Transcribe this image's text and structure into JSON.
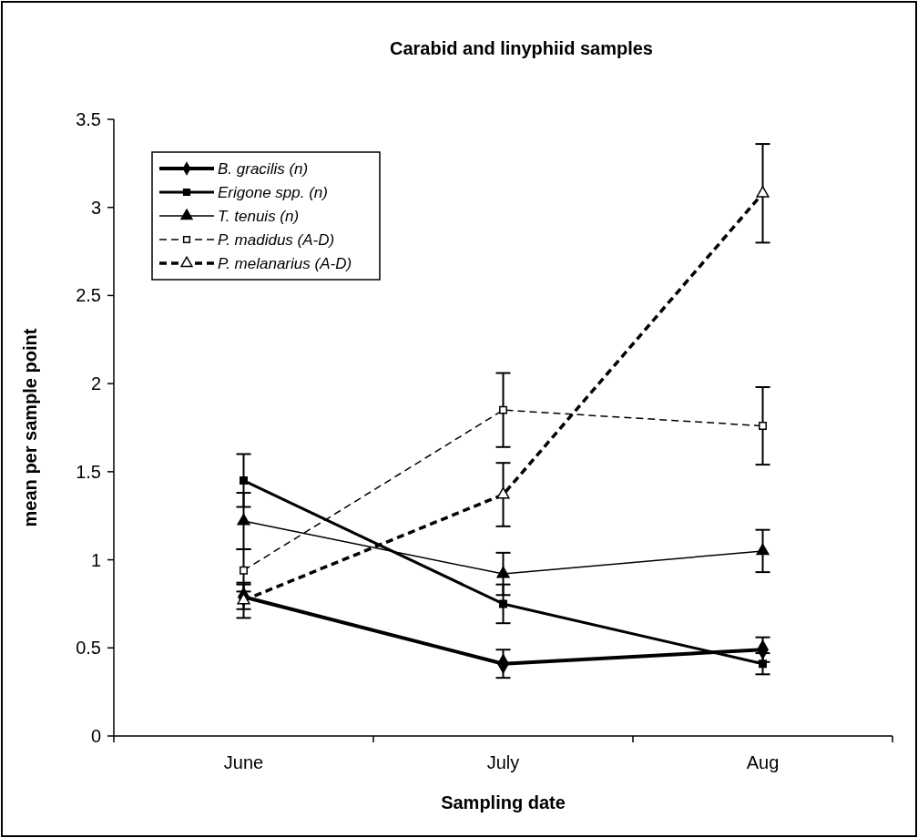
{
  "chart_data": {
    "type": "line",
    "title": "Carabid and linyphiid samples",
    "xlabel": "Sampling date",
    "ylabel": "mean per sample point",
    "categories": [
      "June",
      "July",
      "Aug"
    ],
    "ylim": [
      0,
      3.5
    ],
    "yticks": [
      0,
      0.5,
      1,
      1.5,
      2,
      2.5,
      3,
      3.5
    ],
    "grid": false,
    "legend": "top left",
    "series": [
      {
        "name": "B. gracilis (n)",
        "color": "#000000",
        "marker": "diamond",
        "line_style": "solid",
        "values": [
          0.79,
          0.41,
          0.49
        ],
        "errors": [
          0.07,
          0.08,
          0.07
        ]
      },
      {
        "name": "Erigone spp. (n)",
        "color": "#000000",
        "marker": "square",
        "line_style": "solid",
        "values": [
          1.45,
          0.75,
          0.41
        ],
        "errors": [
          0.15,
          0.11,
          0.06
        ]
      },
      {
        "name": "T. tenuis (n)",
        "color": "#000000",
        "marker": "triangle",
        "line_style": "solid",
        "values": [
          1.22,
          0.92,
          1.05
        ],
        "errors": [
          0.16,
          0.12,
          0.12
        ]
      },
      {
        "name": "P. madidus (A-D)",
        "color": "#000000",
        "marker": "square",
        "line_style": "dashed",
        "values": [
          0.94,
          1.85,
          1.76
        ],
        "errors": [
          0.12,
          0.21,
          0.22
        ]
      },
      {
        "name": "P. melanarius (A-D)",
        "color": "#000000",
        "marker": "triangle",
        "line_style": "dashed",
        "values": [
          0.77,
          1.37,
          3.08
        ],
        "errors": [
          0.1,
          0.18,
          0.28
        ]
      }
    ]
  }
}
